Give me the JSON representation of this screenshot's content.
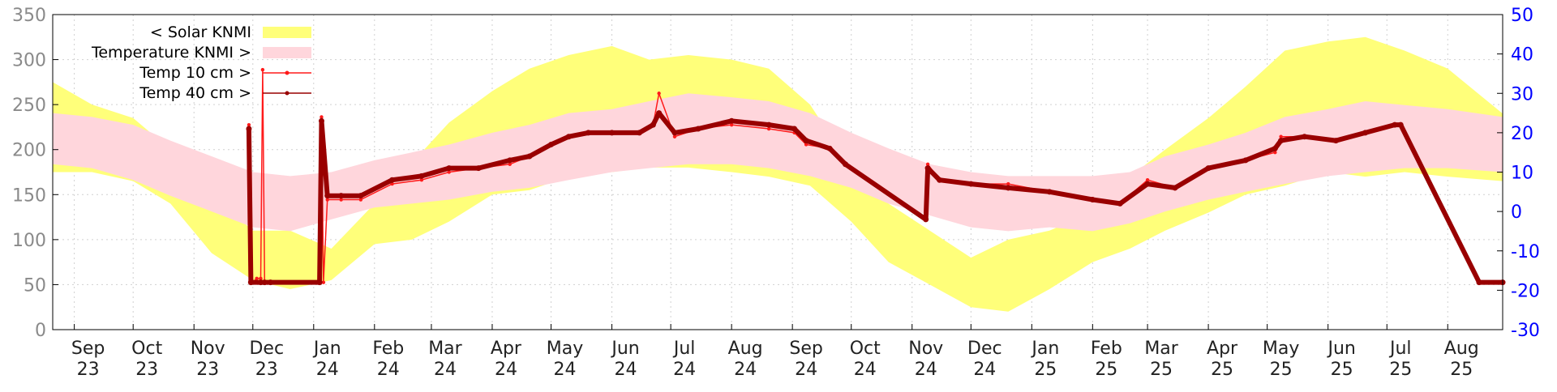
{
  "chart_data": {
    "type": "area",
    "title": "",
    "xlabel": "",
    "ylabel_left": "",
    "ylabel_right": "",
    "ylim_left": [
      0,
      350
    ],
    "ylim_right": [
      -30,
      50
    ],
    "xlim": [
      "2023-08-21",
      "2025-08-29"
    ],
    "grid": true,
    "legend": "top-left",
    "colors": {
      "solar": "#ffff7a",
      "temperature": "#ffd6dc",
      "temp10": "#ff1a1a",
      "temp40": "#990000",
      "right_axis": "#0000ff"
    },
    "yticks_left": [
      0,
      50,
      100,
      150,
      200,
      250,
      300,
      350
    ],
    "yticks_right": [
      -30,
      -20,
      -10,
      0,
      10,
      20,
      30,
      40,
      50
    ],
    "xticks": [
      {
        "date": "2023-09-01",
        "month": "Sep",
        "year": "23"
      },
      {
        "date": "2023-10-01",
        "month": "Oct",
        "year": "23"
      },
      {
        "date": "2023-11-01",
        "month": "Nov",
        "year": "23"
      },
      {
        "date": "2023-12-01",
        "month": "Dec",
        "year": "23"
      },
      {
        "date": "2024-01-01",
        "month": "Jan",
        "year": "24"
      },
      {
        "date": "2024-02-01",
        "month": "Feb",
        "year": "24"
      },
      {
        "date": "2024-03-01",
        "month": "Mar",
        "year": "24"
      },
      {
        "date": "2024-04-01",
        "month": "Apr",
        "year": "24"
      },
      {
        "date": "2024-05-01",
        "month": "May",
        "year": "24"
      },
      {
        "date": "2024-06-01",
        "month": "Jun",
        "year": "24"
      },
      {
        "date": "2024-07-01",
        "month": "Jul",
        "year": "24"
      },
      {
        "date": "2024-08-01",
        "month": "Aug",
        "year": "24"
      },
      {
        "date": "2024-09-01",
        "month": "Sep",
        "year": "24"
      },
      {
        "date": "2024-10-01",
        "month": "Oct",
        "year": "24"
      },
      {
        "date": "2024-11-01",
        "month": "Nov",
        "year": "24"
      },
      {
        "date": "2024-12-01",
        "month": "Dec",
        "year": "24"
      },
      {
        "date": "2025-01-01",
        "month": "Jan",
        "year": "25"
      },
      {
        "date": "2025-02-01",
        "month": "Feb",
        "year": "25"
      },
      {
        "date": "2025-03-01",
        "month": "Mar",
        "year": "25"
      },
      {
        "date": "2025-04-01",
        "month": "Apr",
        "year": "25"
      },
      {
        "date": "2025-05-01",
        "month": "May",
        "year": "25"
      },
      {
        "date": "2025-06-01",
        "month": "Jun",
        "year": "25"
      },
      {
        "date": "2025-07-01",
        "month": "Jul",
        "year": "25"
      },
      {
        "date": "2025-08-01",
        "month": "Aug",
        "year": "25"
      }
    ],
    "series": [
      {
        "name": "< Solar KNMI",
        "axis": "left",
        "kind": "band",
        "x": [
          "2023-08-21",
          "2023-09-10",
          "2023-10-01",
          "2023-10-20",
          "2023-11-10",
          "2023-12-01",
          "2023-12-20",
          "2024-01-10",
          "2024-02-01",
          "2024-02-20",
          "2024-03-10",
          "2024-04-01",
          "2024-04-20",
          "2024-05-10",
          "2024-06-01",
          "2024-06-20",
          "2024-07-10",
          "2024-08-01",
          "2024-08-20",
          "2024-09-10",
          "2024-10-01",
          "2024-10-20",
          "2024-11-10",
          "2024-12-01",
          "2024-12-20",
          "2025-01-10",
          "2025-02-01",
          "2025-02-20",
          "2025-03-10",
          "2025-04-01",
          "2025-04-20",
          "2025-05-10",
          "2025-06-01",
          "2025-06-20",
          "2025-07-10",
          "2025-08-01",
          "2025-08-29"
        ],
        "high": [
          275,
          250,
          235,
          200,
          150,
          110,
          110,
          90,
          140,
          185,
          230,
          265,
          290,
          305,
          315,
          300,
          305,
          300,
          290,
          250,
          180,
          140,
          110,
          80,
          100,
          110,
          130,
          170,
          200,
          235,
          270,
          310,
          320,
          325,
          310,
          290,
          240
        ],
        "low": [
          175,
          175,
          165,
          140,
          85,
          55,
          45,
          55,
          95,
          100,
          120,
          150,
          155,
          170,
          175,
          180,
          180,
          175,
          170,
          160,
          120,
          75,
          50,
          25,
          20,
          45,
          75,
          90,
          110,
          130,
          150,
          160,
          175,
          170,
          175,
          170,
          165
        ]
      },
      {
        "name": "Temperature KNMI >",
        "axis": "right",
        "kind": "band",
        "x": [
          "2023-08-21",
          "2023-09-10",
          "2023-10-01",
          "2023-10-20",
          "2023-11-10",
          "2023-12-01",
          "2023-12-20",
          "2024-01-10",
          "2024-02-01",
          "2024-02-20",
          "2024-03-10",
          "2024-04-01",
          "2024-04-20",
          "2024-05-10",
          "2024-06-01",
          "2024-06-20",
          "2024-07-10",
          "2024-08-01",
          "2024-08-20",
          "2024-09-10",
          "2024-10-01",
          "2024-10-20",
          "2024-11-10",
          "2024-12-01",
          "2024-12-20",
          "2025-01-10",
          "2025-02-01",
          "2025-02-20",
          "2025-03-10",
          "2025-04-01",
          "2025-04-20",
          "2025-05-10",
          "2025-06-01",
          "2025-06-20",
          "2025-07-10",
          "2025-08-01",
          "2025-08-29"
        ],
        "high": [
          25,
          24,
          22,
          18,
          14,
          10,
          9,
          10,
          13,
          15,
          17,
          20,
          22,
          25,
          26,
          28,
          30,
          29,
          28,
          25,
          20,
          16,
          12,
          10,
          9,
          9,
          9,
          10,
          14,
          17,
          20,
          24,
          26,
          28,
          27,
          26,
          24
        ],
        "low": [
          12,
          11,
          8,
          4,
          0,
          -4,
          -5,
          -2,
          1,
          2,
          3,
          5,
          6,
          8,
          10,
          11,
          12,
          12,
          11,
          9,
          6,
          2,
          -1,
          -4,
          -5,
          -4,
          -5,
          -3,
          0,
          3,
          5,
          7,
          9,
          10,
          11,
          11,
          10
        ]
      },
      {
        "name": "Temp 10 cm >",
        "axis": "right",
        "kind": "line",
        "x": [
          "2023-11-29",
          "2023-11-30",
          "2023-12-01",
          "2023-12-03",
          "2023-12-05",
          "2023-12-06",
          "2023-12-07",
          "2023-12-10",
          "2024-01-04",
          "2024-01-05",
          "2024-01-06",
          "2024-01-08",
          "2024-01-15",
          "2024-01-25",
          "2024-02-10",
          "2024-02-25",
          "2024-03-10",
          "2024-03-25",
          "2024-04-10",
          "2024-04-20",
          "2024-05-01",
          "2024-05-10",
          "2024-05-20",
          "2024-06-01",
          "2024-06-15",
          "2024-06-22",
          "2024-06-25",
          "2024-07-03",
          "2024-07-15",
          "2024-08-01",
          "2024-08-20",
          "2024-09-02",
          "2024-09-08",
          "2024-09-20",
          "2024-09-28",
          "2024-11-08",
          "2024-11-09",
          "2024-11-15",
          "2024-12-01",
          "2024-12-20",
          "2025-01-10",
          "2025-02-01",
          "2025-02-15",
          "2025-03-01",
          "2025-03-15",
          "2025-04-01",
          "2025-04-20",
          "2025-05-05",
          "2025-05-08",
          "2025-05-20",
          "2025-06-05",
          "2025-06-20",
          "2025-07-05",
          "2025-07-08",
          "2025-08-17",
          "2025-08-29"
        ],
        "y": [
          22,
          -17,
          -18,
          -17,
          -17,
          36,
          -18,
          -18,
          -18,
          24,
          -18,
          3,
          3,
          3,
          7,
          8,
          10,
          11,
          12,
          14,
          17,
          19,
          20,
          20,
          20,
          22,
          30,
          19,
          21,
          22,
          21,
          20,
          17,
          16,
          12,
          -2,
          12,
          8,
          7,
          7,
          5,
          3,
          2,
          8,
          6,
          11,
          13,
          15,
          19,
          19,
          18,
          20,
          22,
          22,
          -18,
          -18
        ]
      },
      {
        "name": "Temp 40 cm >",
        "axis": "right",
        "kind": "line",
        "x": [
          "2023-11-29",
          "2023-11-30",
          "2023-12-05",
          "2023-12-07",
          "2023-12-10",
          "2024-01-04",
          "2024-01-05",
          "2024-01-08",
          "2024-01-15",
          "2024-01-25",
          "2024-02-10",
          "2024-02-25",
          "2024-03-10",
          "2024-03-25",
          "2024-04-10",
          "2024-04-20",
          "2024-05-01",
          "2024-05-10",
          "2024-05-20",
          "2024-06-01",
          "2024-06-15",
          "2024-06-22",
          "2024-06-25",
          "2024-07-03",
          "2024-07-15",
          "2024-08-01",
          "2024-08-20",
          "2024-09-02",
          "2024-09-08",
          "2024-09-20",
          "2024-09-28",
          "2024-11-08",
          "2024-11-09",
          "2024-11-15",
          "2024-12-01",
          "2024-12-20",
          "2025-01-10",
          "2025-02-01",
          "2025-02-15",
          "2025-03-01",
          "2025-03-15",
          "2025-04-01",
          "2025-04-20",
          "2025-05-05",
          "2025-05-08",
          "2025-05-20",
          "2025-06-05",
          "2025-06-20",
          "2025-07-05",
          "2025-07-08",
          "2025-08-17",
          "2025-08-29"
        ],
        "y": [
          21,
          -18,
          -18,
          -18,
          -18,
          -18,
          23,
          4,
          4,
          4,
          8,
          9,
          11,
          11,
          13,
          14,
          17,
          19,
          20,
          20,
          20,
          22,
          25,
          20,
          21,
          23,
          22,
          21,
          18,
          16,
          12,
          -2,
          11,
          8,
          7,
          6,
          5,
          3,
          2,
          7,
          6,
          11,
          13,
          16,
          18,
          19,
          18,
          20,
          22,
          22,
          -18,
          -18
        ]
      }
    ]
  }
}
